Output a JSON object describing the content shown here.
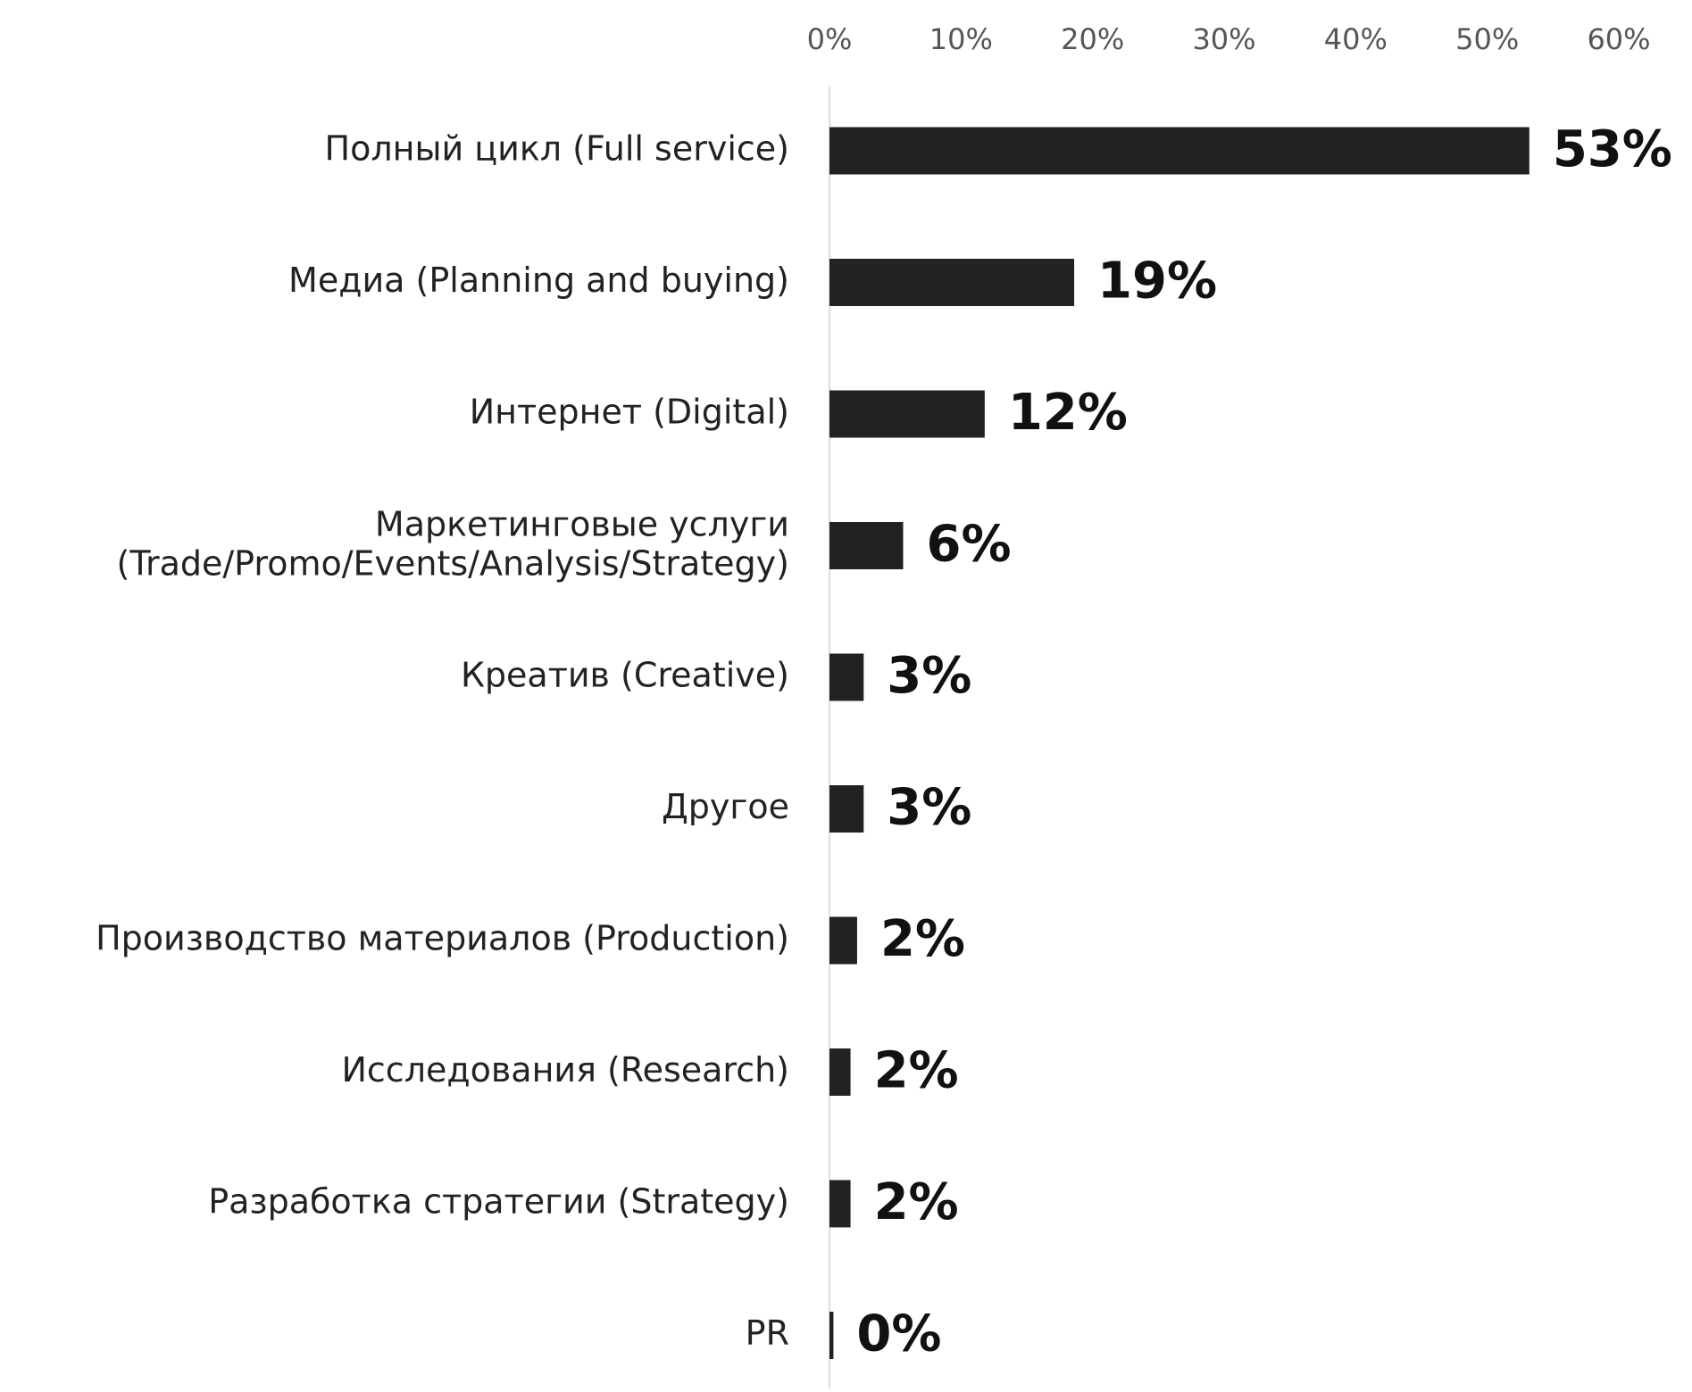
{
  "chart_data": {
    "type": "bar",
    "orientation": "horizontal",
    "categories": [
      "Полный цикл (Full service)",
      "Медиа (Planning and buying)",
      "Интернет (Digital)",
      "Маркетинговые услуги\n(Trade/Promo/Events/Analysis/Strategy)",
      "Креатив (Creative)",
      "Другое",
      "Производство материалов (Production)",
      "Исследования (Research)",
      "Разработка стратегии (Strategy)",
      "PR"
    ],
    "values": [
      53.2,
      18.6,
      11.8,
      5.6,
      2.6,
      2.6,
      2.1,
      1.6,
      1.6,
      0.3
    ],
    "value_labels": [
      "53%",
      "19%",
      "12%",
      "6%",
      "3%",
      "3%",
      "2%",
      "2%",
      "2%",
      "0%"
    ],
    "color": "#222222",
    "xlim": [
      0,
      60
    ],
    "xticks": [
      {
        "value": 0,
        "label": "0%"
      },
      {
        "value": 10,
        "label": "10%"
      },
      {
        "value": 20,
        "label": "20%"
      },
      {
        "value": 30,
        "label": "30%"
      },
      {
        "value": 40,
        "label": "40%"
      },
      {
        "value": 50,
        "label": "50%"
      },
      {
        "value": 60,
        "label": "60%"
      }
    ],
    "grid": false
  }
}
